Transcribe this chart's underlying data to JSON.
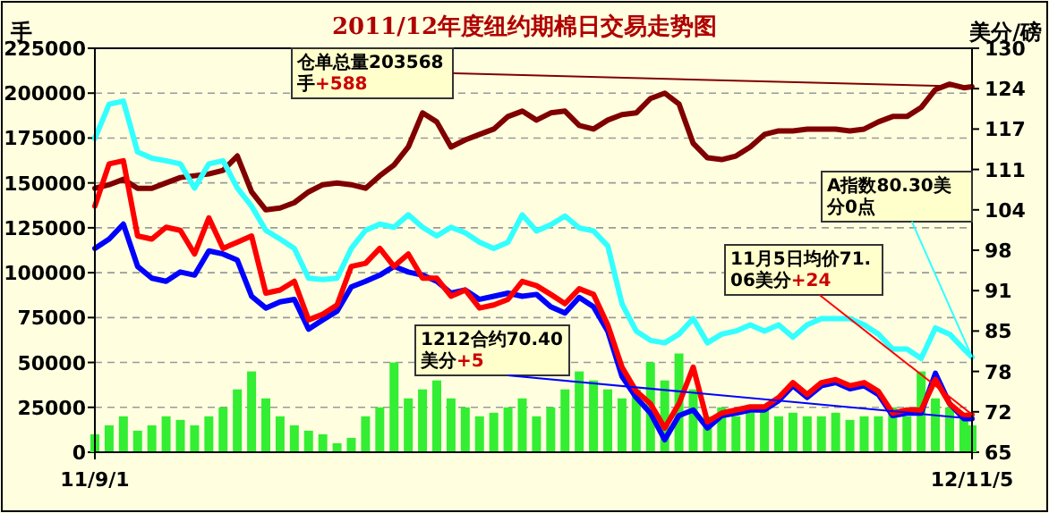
{
  "chart_data": {
    "type": "line",
    "title": "2011/12年度纽约期棉日交易走势图",
    "ylabel": "手",
    "y2label": "美分/磅",
    "grid": "y",
    "x": [
      "2011-09-01",
      "2011-09-08",
      "2011-09-15",
      "2011-09-22",
      "2011-09-29",
      "2011-10-06",
      "2011-10-13",
      "2011-10-20",
      "2011-10-27",
      "2011-11-03",
      "2011-11-10",
      "2011-11-17",
      "2011-11-24",
      "2011-12-01",
      "2011-12-08",
      "2011-12-15",
      "2011-12-22",
      "2011-12-29",
      "2012-01-05",
      "2012-01-12",
      "2012-01-19",
      "2012-01-26",
      "2012-02-02",
      "2012-02-09",
      "2012-02-16",
      "2012-02-23",
      "2012-03-01",
      "2012-03-08",
      "2012-03-15",
      "2012-03-22",
      "2012-03-29",
      "2012-04-05",
      "2012-04-12",
      "2012-04-19",
      "2012-04-26",
      "2012-05-03",
      "2012-05-10",
      "2012-05-17",
      "2012-05-24",
      "2012-05-31",
      "2012-06-07",
      "2012-06-14",
      "2012-06-21",
      "2012-06-28",
      "2012-07-05",
      "2012-07-12",
      "2012-07-19",
      "2012-07-26",
      "2012-08-02",
      "2012-08-09",
      "2012-08-16",
      "2012-08-23",
      "2012-08-30",
      "2012-09-06",
      "2012-09-13",
      "2012-09-20",
      "2012-09-27",
      "2012-10-04",
      "2012-10-11",
      "2012-10-18",
      "2012-10-25",
      "2012-11-01",
      "2012-11-05"
    ],
    "xlim": [
      "2011-09-01",
      "2012-11-05"
    ],
    "xticks": [
      {
        "value": "2011-09-01",
        "label": "11/9/1"
      },
      {
        "value": "2012-11-05",
        "label": "12/11/5"
      }
    ],
    "ylim": [
      0,
      225000
    ],
    "yticks": [
      0,
      25000,
      50000,
      75000,
      100000,
      125000,
      150000,
      175000,
      200000,
      225000
    ],
    "y2lim": [
      65,
      130
    ],
    "y2ticks": [
      65,
      {
        "value": 71.5,
        "label": "72"
      },
      78,
      {
        "value": 84.5,
        "label": "85"
      },
      91,
      {
        "value": 97.5,
        "label": "98"
      },
      104,
      {
        "value": 110.5,
        "label": "111"
      },
      117,
      {
        "value": 123.5,
        "label": "124"
      },
      130
    ],
    "series": [
      {
        "type": "bar",
        "color": "#33ee33",
        "values": [
          10000,
          15000,
          20000,
          12000,
          15000,
          20000,
          18000,
          15000,
          20000,
          25000,
          35000,
          45000,
          30000,
          20000,
          15000,
          12000,
          10000,
          5000,
          8000,
          20000,
          25000,
          50000,
          30000,
          35000,
          40000,
          30000,
          25000,
          20000,
          22000,
          25000,
          30000,
          20000,
          25000,
          35000,
          45000,
          40000,
          35000,
          30000,
          35000,
          50000,
          40000,
          55000,
          35000,
          20000,
          25000,
          20000,
          22000,
          25000,
          20000,
          22000,
          20000,
          20000,
          22000,
          18000,
          20000,
          20000,
          25000,
          20000,
          45000,
          30000,
          25000,
          20000,
          15000
        ]
      },
      {
        "color": "#800000",
        "values": [
          147000,
          149000,
          152000,
          147000,
          147000,
          150000,
          153000,
          154000,
          155000,
          157000,
          165000,
          145000,
          135000,
          136000,
          139000,
          145000,
          149000,
          150000,
          149000,
          147000,
          154000,
          160000,
          170000,
          189000,
          184000,
          170000,
          174000,
          177000,
          180000,
          187000,
          190000,
          185000,
          189000,
          190000,
          182000,
          180000,
          185000,
          188000,
          189000,
          197000,
          200000,
          194000,
          172000,
          164000,
          163000,
          165000,
          170000,
          177000,
          179000,
          179000,
          180000,
          180000,
          180000,
          179000,
          180000,
          184000,
          187000,
          187000,
          192000,
          202000,
          205000,
          203000,
          203568
        ]
      },
      {
        "axis": "y2",
        "color": "#33ffff",
        "values": [
          115.5,
          121.0,
          121.5,
          113.3,
          112.3,
          111.9,
          111.4,
          107.5,
          111.4,
          111.9,
          107.5,
          104.6,
          100.7,
          99.3,
          97.8,
          93.0,
          92.8,
          93.0,
          97.8,
          100.7,
          101.7,
          101.2,
          103.2,
          101.2,
          99.8,
          101.2,
          100.3,
          98.8,
          97.8,
          98.8,
          103.2,
          100.6,
          101.6,
          103.0,
          101.1,
          100.6,
          98.2,
          88.9,
          84.5,
          83.0,
          82.6,
          84.0,
          86.5,
          82.6,
          84.0,
          84.5,
          85.5,
          84.5,
          85.5,
          83.5,
          85.5,
          86.5,
          86.5,
          86.5,
          85.5,
          84.0,
          81.6,
          81.6,
          80.1,
          85.0,
          84.0,
          81.6,
          80.3
        ]
      },
      {
        "axis": "y2",
        "color": "#0000ff",
        "values": [
          97.8,
          99.3,
          101.7,
          94.9,
          93.0,
          92.5,
          94.0,
          93.5,
          97.4,
          96.9,
          95.9,
          90.1,
          88.2,
          89.2,
          89.6,
          84.8,
          86.3,
          87.7,
          91.6,
          92.5,
          93.5,
          94.9,
          94.0,
          93.5,
          92.5,
          90.6,
          91.1,
          89.6,
          90.1,
          90.6,
          90.1,
          90.4,
          88.4,
          87.4,
          89.9,
          88.4,
          84.5,
          77.2,
          73.8,
          71.3,
          67.0,
          70.9,
          71.8,
          68.9,
          70.9,
          71.3,
          71.8,
          71.8,
          73.3,
          75.7,
          73.8,
          75.7,
          76.2,
          75.2,
          75.7,
          74.3,
          70.9,
          71.3,
          71.3,
          77.7,
          72.8,
          70.4,
          70.4
        ]
      },
      {
        "axis": "y2",
        "color": "#ff0000",
        "values": [
          104.6,
          111.4,
          111.9,
          99.8,
          99.3,
          101.2,
          100.7,
          96.9,
          102.7,
          97.8,
          98.8,
          99.8,
          90.6,
          91.1,
          92.5,
          86.3,
          87.2,
          88.7,
          94.9,
          95.4,
          97.8,
          94.9,
          96.9,
          93.0,
          93.0,
          90.1,
          91.1,
          88.2,
          88.7,
          89.6,
          92.5,
          91.8,
          90.4,
          88.9,
          91.3,
          90.4,
          85.5,
          78.7,
          74.8,
          72.8,
          68.9,
          72.8,
          78.7,
          69.9,
          71.3,
          71.8,
          72.3,
          72.3,
          73.8,
          76.2,
          74.3,
          76.2,
          76.7,
          75.7,
          76.2,
          74.8,
          71.3,
          71.8,
          71.8,
          76.7,
          72.8,
          70.9,
          71.06
        ]
      }
    ],
    "annotations": [
      {
        "text": "仓单总量203568手+588",
        "x": "2012-11-05",
        "y": 203568
      },
      {
        "text": "A指数80.30美分0点",
        "x": "2012-11-05",
        "y": 53000
      },
      {
        "text": "11月5日均价71.06美分+24",
        "x": "2012-11-05",
        "y": 21000
      },
      {
        "text": "1212合约70.40美分+5",
        "x": "2012-11-05",
        "y": 18700
      }
    ]
  }
}
